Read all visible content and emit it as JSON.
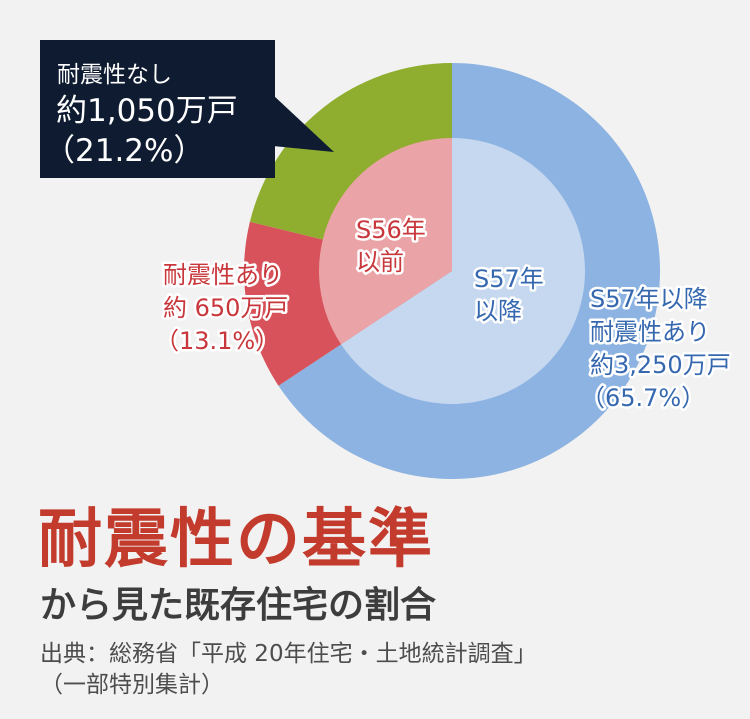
{
  "colors": {
    "background": "#f2f2f2",
    "title": "#c23b2c",
    "subtitle": "#3d3d3d",
    "source": "#4d4d4d",
    "callout_bg": "#0e1b30",
    "callout_text": "#ffffff",
    "label_red": "#c8373b",
    "label_blue": "#3668b0"
  },
  "source": {
    "line1": "出典：総務省「平成 20年住宅・土地統計調査」",
    "line2": "（一部特別集計）"
  },
  "chart_data": {
    "type": "pie",
    "title": "耐震性の基準",
    "subtitle": "から見た既存住宅の割合",
    "inner_ring": [
      {
        "label_lines": [
          "S57年",
          "以降"
        ],
        "value": 65.7,
        "color": "#c6d8f0"
      },
      {
        "label_lines": [
          "S56年",
          "以前"
        ],
        "value": 34.3,
        "color": "#eaa3a6"
      }
    ],
    "outer_ring": [
      {
        "label_lines": [
          "S57年以降",
          "耐震性あり",
          "約3,250万戸",
          "（65.7%）"
        ],
        "value": 65.7,
        "color": "#8cb3e1"
      },
      {
        "label_lines": [
          "耐震性あり",
          "約 650万戸",
          "（13.1%）"
        ],
        "value": 13.1,
        "color": "#d7525a"
      },
      {
        "label_lines": [
          "耐震性なし",
          "約1,050万戸",
          "（21.2%）"
        ],
        "value": 21.2,
        "color": "#8fad2e"
      }
    ]
  }
}
